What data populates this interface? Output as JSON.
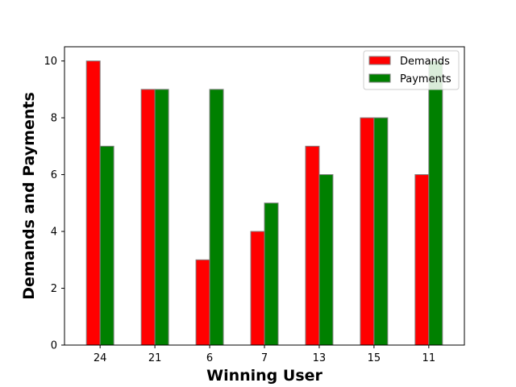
{
  "chart_data": {
    "type": "bar",
    "title": "",
    "xlabel": "Winning User",
    "ylabel": "Demands and Payments",
    "categories": [
      "24",
      "21",
      "6",
      "7",
      "13",
      "15",
      "11"
    ],
    "series": [
      {
        "name": "Demands",
        "values": [
          10,
          9,
          3,
          4,
          7,
          8,
          6
        ],
        "color": "#ff0000"
      },
      {
        "name": "Payments",
        "values": [
          7,
          9,
          9,
          5,
          6,
          8,
          10
        ],
        "color": "#008000"
      }
    ],
    "ylim": [
      0,
      10.5
    ],
    "yticks": [
      0,
      2,
      4,
      6,
      8,
      10
    ],
    "grid": false,
    "legend_position": "top-right",
    "bar_edge_color": "#808080"
  }
}
